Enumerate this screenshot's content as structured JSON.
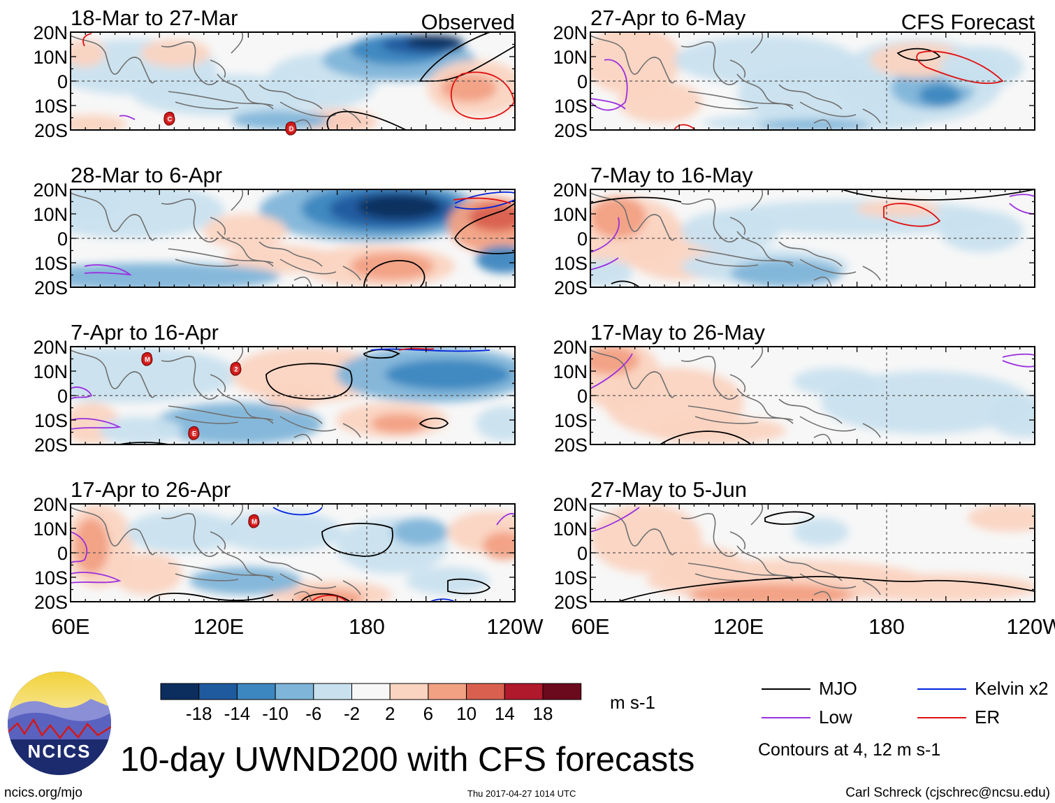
{
  "figure": {
    "title": "10-day UWND200 with CFS forecasts",
    "source_url": "ncics.org/mjo",
    "timestamp": "Thu 2017-04-27 1014 UTC",
    "credit": "Carl Schreck (cjschrec@ncsu.edu)",
    "logo_text": "NCICS",
    "observed_label": "Observed",
    "forecast_label": "CFS Forecast"
  },
  "axes": {
    "lat_labels": [
      "20N",
      "10N",
      "0",
      "10S",
      "20S"
    ],
    "lon_labels": [
      "60E",
      "120E",
      "180",
      "120W"
    ]
  },
  "panels": [
    {
      "title": "18-Mar to 27-Mar",
      "group": "observed"
    },
    {
      "title": "28-Mar to 6-Apr",
      "group": "observed"
    },
    {
      "title": "7-Apr to 16-Apr",
      "group": "observed"
    },
    {
      "title": "17-Apr to 26-Apr",
      "group": "observed"
    },
    {
      "title": "27-Apr to 6-May",
      "group": "forecast"
    },
    {
      "title": "7-May to 16-May",
      "group": "forecast"
    },
    {
      "title": "17-May to 26-May",
      "group": "forecast"
    },
    {
      "title": "27-May to 5-Jun",
      "group": "forecast"
    }
  ],
  "colorbar": {
    "units": "m s-1",
    "ticks": [
      "-18",
      "-14",
      "-10",
      "-6",
      "-2",
      "2",
      "6",
      "10",
      "14",
      "18"
    ],
    "colors": [
      "#0b2e5e",
      "#1f5a9e",
      "#3c87c0",
      "#7fb5d9",
      "#c9e1ef",
      "#f7f7f7",
      "#fbd4c1",
      "#f2a183",
      "#d9604f",
      "#b0182c",
      "#6b0a1c"
    ]
  },
  "legend": {
    "items": [
      {
        "label": "MJO",
        "color": "#000000"
      },
      {
        "label": "Kelvin x2",
        "color": "#0022dd"
      },
      {
        "label": "Low",
        "color": "#9a2fe0"
      },
      {
        "label": "ER",
        "color": "#e01010"
      }
    ],
    "note": "Contours at 4, 12 m s-1"
  },
  "storm_markers": [
    {
      "panel": 0,
      "label": "C"
    },
    {
      "panel": 0,
      "label": "D"
    },
    {
      "panel": 2,
      "label": "M"
    },
    {
      "panel": 2,
      "label": "2"
    },
    {
      "panel": 2,
      "label": "E"
    },
    {
      "panel": 3,
      "label": "M"
    }
  ]
}
